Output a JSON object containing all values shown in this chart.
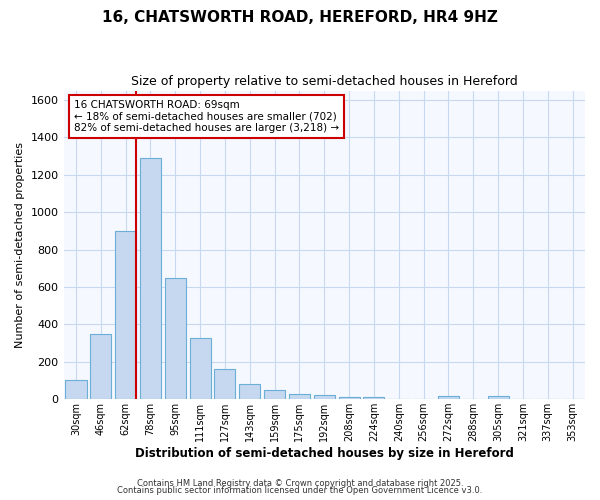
{
  "title_line1": "16, CHATSWORTH ROAD, HEREFORD, HR4 9HZ",
  "title_line2": "Size of property relative to semi-detached houses in Hereford",
  "xlabel": "Distribution of semi-detached houses by size in Hereford",
  "ylabel": "Number of semi-detached properties",
  "bar_labels": [
    "30sqm",
    "46sqm",
    "62sqm",
    "78sqm",
    "95sqm",
    "111sqm",
    "127sqm",
    "143sqm",
    "159sqm",
    "175sqm",
    "192sqm",
    "208sqm",
    "224sqm",
    "240sqm",
    "256sqm",
    "272sqm",
    "288sqm",
    "305sqm",
    "321sqm",
    "337sqm",
    "353sqm"
  ],
  "bar_heights": [
    100,
    350,
    900,
    1290,
    650,
    325,
    160,
    80,
    50,
    30,
    20,
    10,
    10,
    0,
    0,
    15,
    0,
    15,
    0,
    0,
    0
  ],
  "bar_color": "#c5d8f0",
  "bar_edge_color": "#6baed6",
  "ylim": [
    0,
    1650
  ],
  "yticks": [
    0,
    200,
    400,
    600,
    800,
    1000,
    1200,
    1400,
    1600
  ],
  "annotation_text": "16 CHATSWORTH ROAD: 69sqm\n← 18% of semi-detached houses are smaller (702)\n82% of semi-detached houses are larger (3,218) →",
  "annotation_box_color": "#ffffff",
  "annotation_border_color": "#cc0000",
  "vline_color": "#cc0000",
  "background_color": "#ffffff",
  "plot_bg_color": "#f5f8ff",
  "grid_color": "#c8d8ee",
  "footer_line1": "Contains HM Land Registry data © Crown copyright and database right 2025.",
  "footer_line2": "Contains public sector information licensed under the Open Government Licence v3.0."
}
